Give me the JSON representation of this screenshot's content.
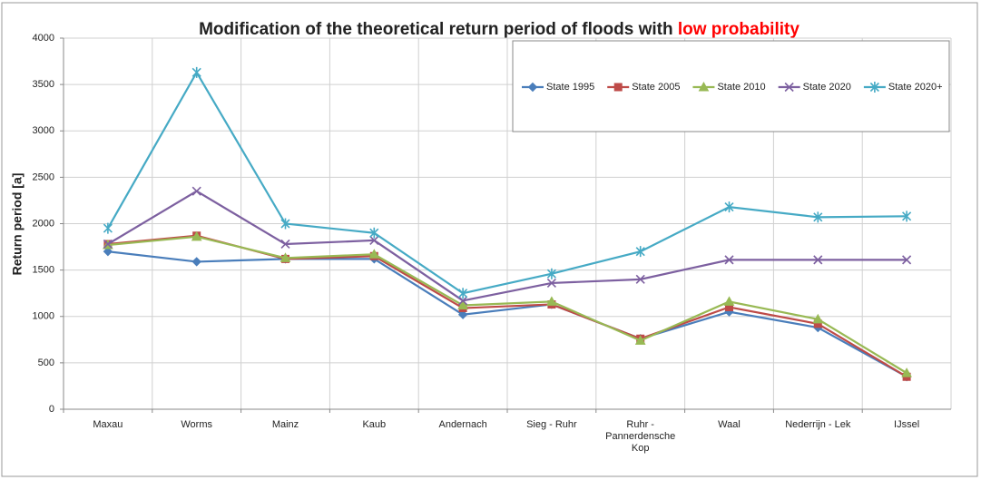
{
  "chart_data": {
    "type": "line",
    "title": "Modification of the theoretical return period of floods with",
    "title_highlight": "low probability",
    "ylabel": "Return period [a]",
    "categories": [
      "Maxau",
      "Worms",
      "Mainz",
      "Kaub",
      "Andernach",
      "Sieg - Ruhr",
      "Ruhr - Pannerdensche Kop",
      "Waal",
      "Nederrijn - Lek",
      "IJssel"
    ],
    "series": [
      {
        "name": "State 1995",
        "color": "#4a7ebb",
        "marker": "diamond",
        "values": [
          1700,
          1590,
          1620,
          1620,
          1020,
          1130,
          760,
          1050,
          880,
          350
        ]
      },
      {
        "name": "State 2005",
        "color": "#be4b48",
        "marker": "square",
        "values": [
          1780,
          1870,
          1620,
          1650,
          1090,
          1130,
          760,
          1100,
          920,
          350
        ]
      },
      {
        "name": "State 2010",
        "color": "#98b954",
        "marker": "triangle",
        "values": [
          1770,
          1860,
          1630,
          1670,
          1120,
          1160,
          740,
          1160,
          970,
          390
        ]
      },
      {
        "name": "State 2020",
        "color": "#7d60a0",
        "marker": "x",
        "values": [
          1780,
          2350,
          1780,
          1820,
          1170,
          1360,
          1400,
          1610,
          1610,
          1610
        ]
      },
      {
        "name": "State 2020+",
        "color": "#46aac5",
        "marker": "asterisk",
        "values": [
          1950,
          3630,
          2000,
          1900,
          1250,
          1460,
          1700,
          2180,
          2070,
          2080
        ]
      }
    ],
    "ylim": [
      0,
      4000
    ],
    "yticks": [
      0,
      500,
      1000,
      1500,
      2000,
      2500,
      3000,
      3500,
      4000
    ],
    "grid": true,
    "legend": "top-right"
  }
}
